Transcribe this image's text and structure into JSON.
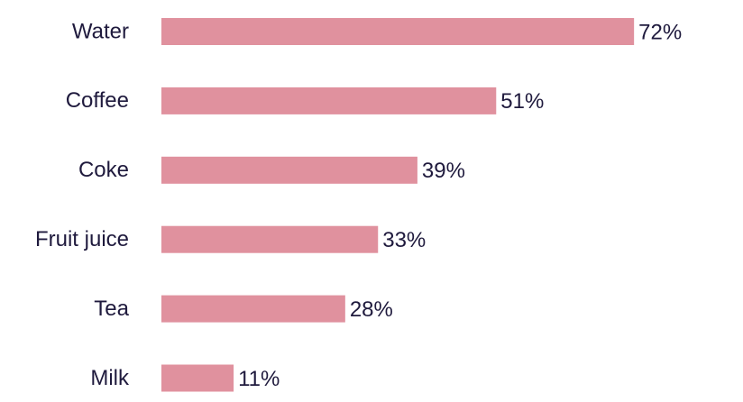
{
  "chart_data": {
    "type": "bar",
    "orientation": "horizontal",
    "categories": [
      "Water",
      "Coffee",
      "Coke",
      "Fruit juice",
      "Tea",
      "Milk"
    ],
    "values": [
      72,
      51,
      39,
      33,
      28,
      11
    ],
    "value_labels": [
      "72%",
      "51%",
      "39%",
      "33%",
      "28%",
      "11%"
    ],
    "color": "#e0919e"
  }
}
